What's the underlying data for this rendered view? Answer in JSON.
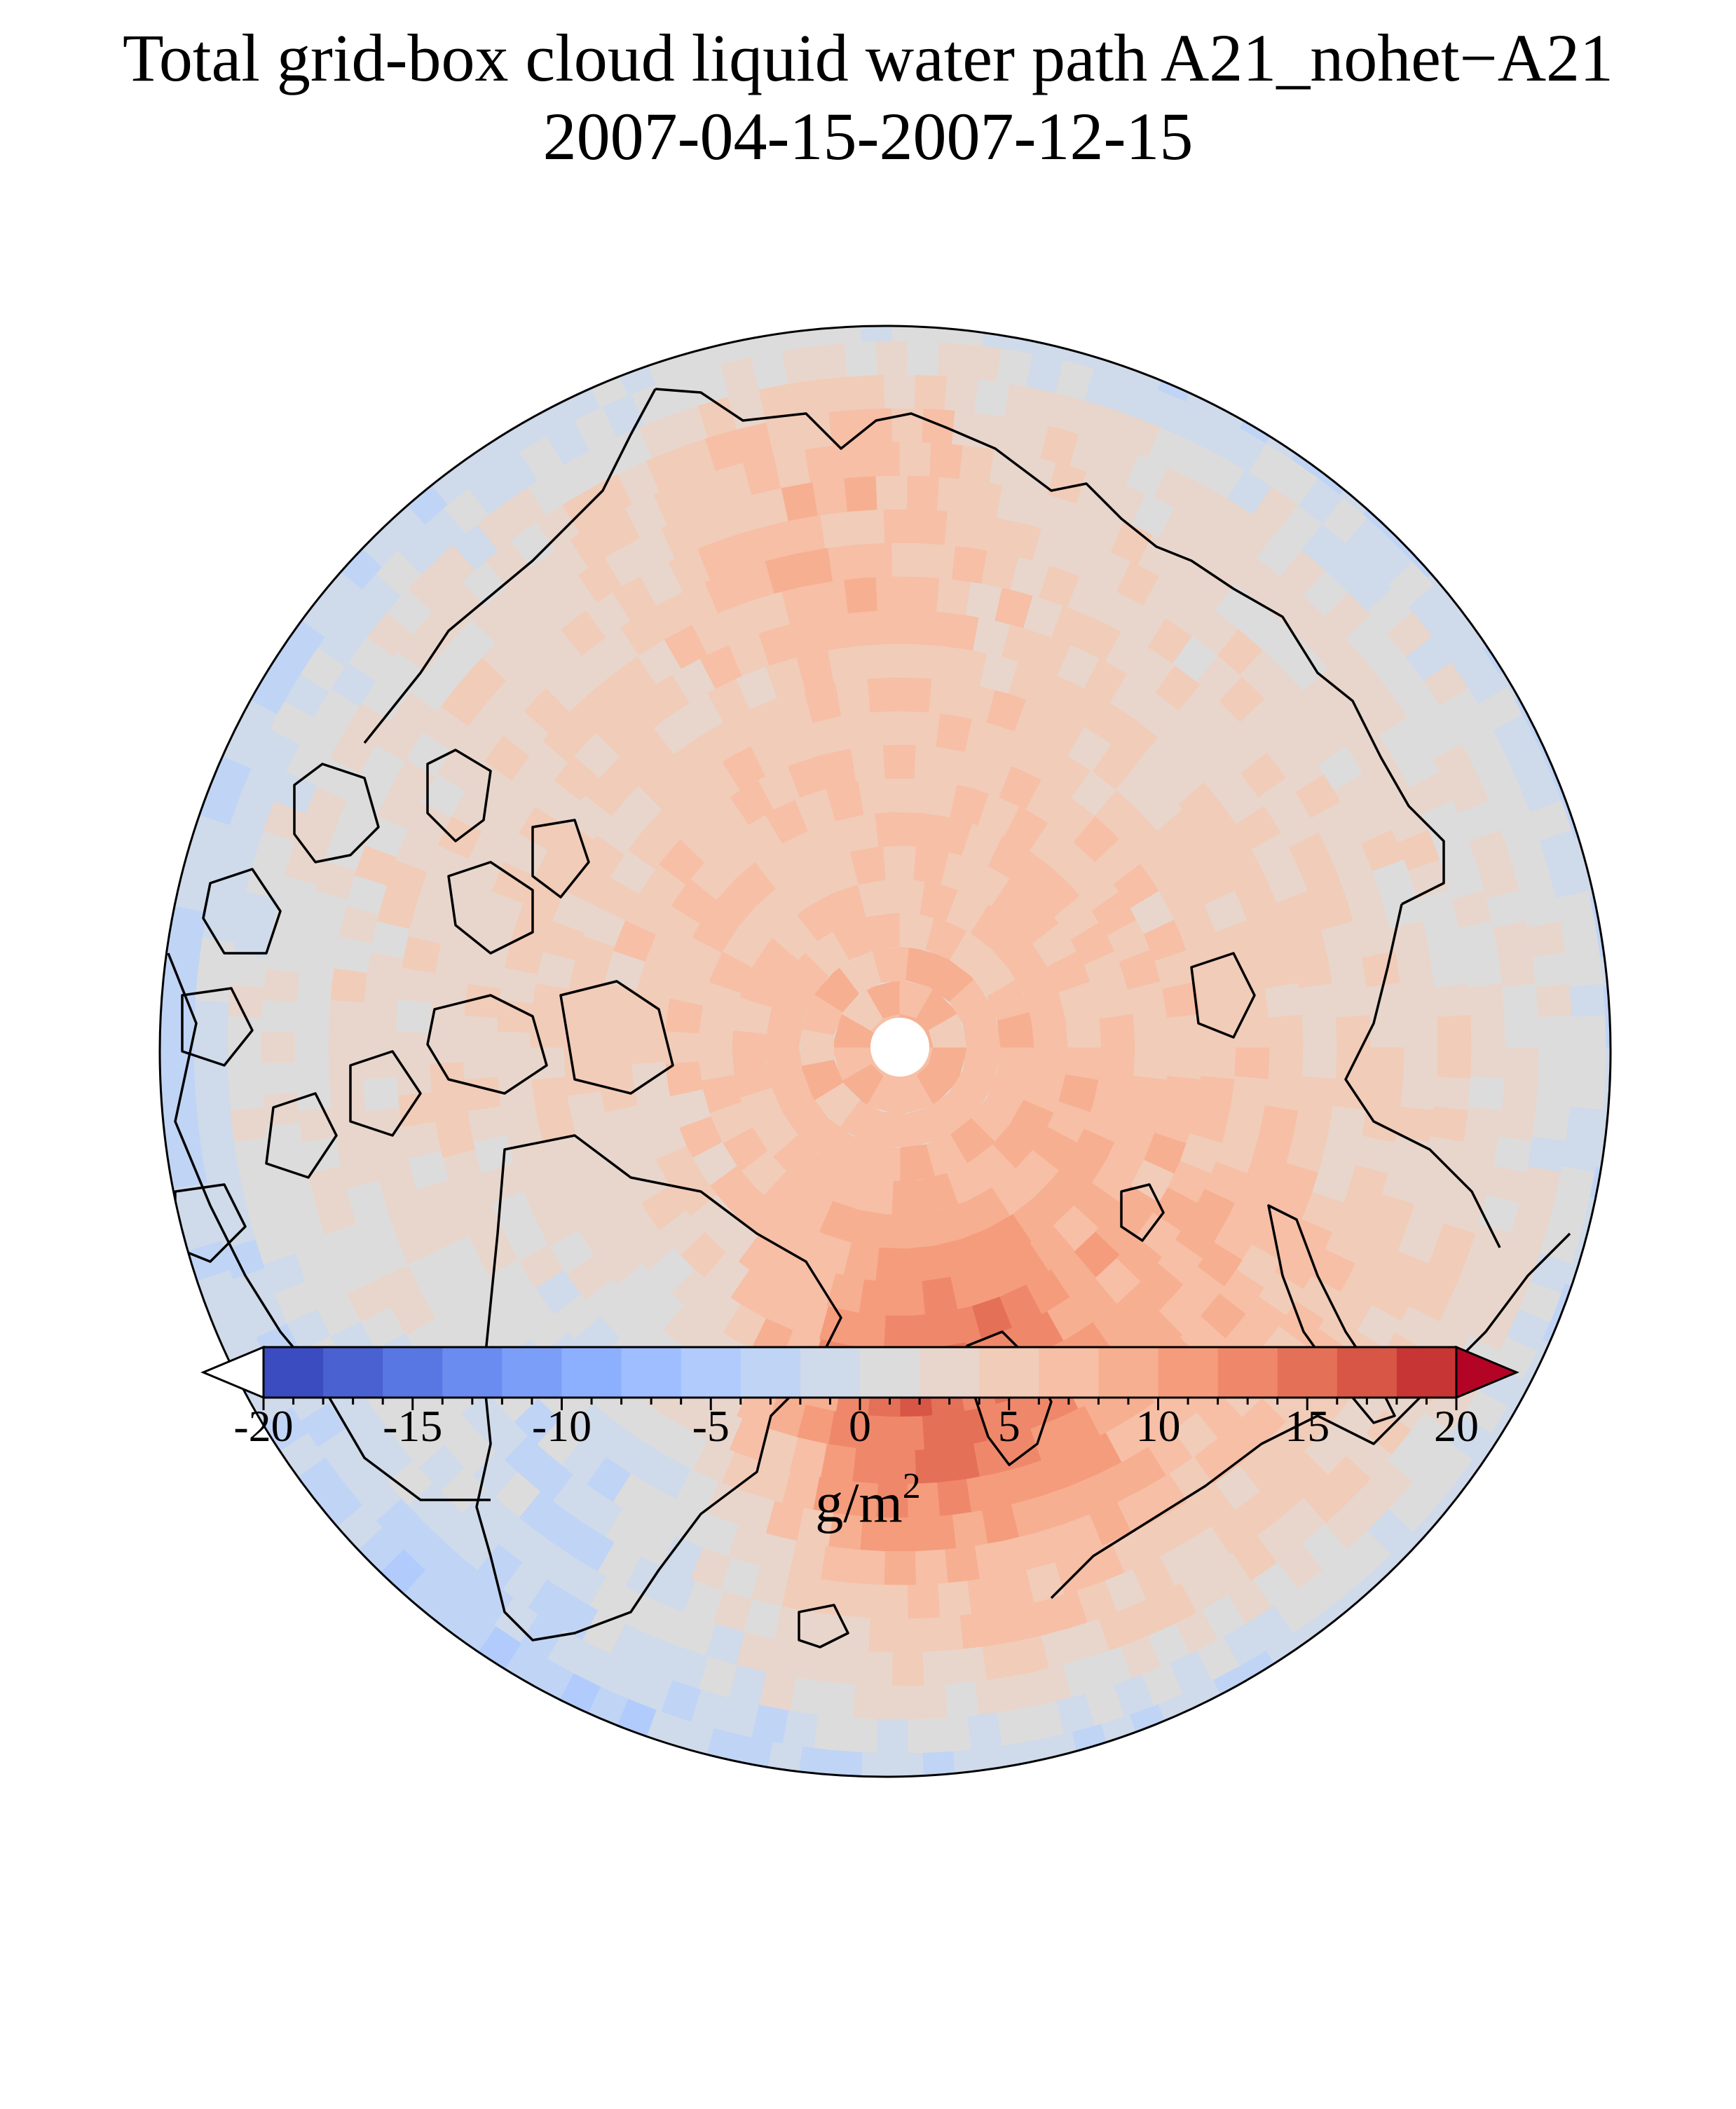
{
  "title": {
    "line1": "Total grid-box cloud liquid water path A21_nohet−A21",
    "line2": "2007-04-15-2007-12-15"
  },
  "colorbar": {
    "min": -20,
    "max": 20,
    "step": 2,
    "tick_labels": [
      "-20",
      "-15",
      "-10",
      "-5",
      "0",
      "5",
      "10",
      "15",
      "20"
    ],
    "tick_values": [
      -20,
      -15,
      -10,
      -5,
      0,
      5,
      10,
      15,
      20
    ],
    "units_base": "g/m",
    "units_exp": "2",
    "extend": "both",
    "colors": [
      "#3b4cc0",
      "#4a61d1",
      "#5977e3",
      "#6a8bef",
      "#7b9ff9",
      "#8db0fe",
      "#9ebeff",
      "#b0cbfc",
      "#c0d4f5",
      "#cfdaea",
      "#dddcdc",
      "#e8d6cc",
      "#f1ccb8",
      "#f6bfa6",
      "#f7af91",
      "#f59c7d",
      "#ef886b",
      "#e57058",
      "#d85646",
      "#c73635"
    ],
    "under_color": "#ffffff",
    "over_color": "#b40426"
  },
  "map": {
    "projection": "north-polar-stereographic",
    "pole_mask_color": "#ffffff",
    "background_color": "#dddcdc",
    "coastline_color": "#000000",
    "field_description_colors": {
      "near_zero": "#dddcdc",
      "slight_positive": "#e8d6cc",
      "moderate_positive": "#f1ccb8",
      "positive": "#f6bfa6",
      "strong_positive": "#f59c7d",
      "max_positive": "#c73635",
      "slight_negative": "#cfdaea"
    }
  }
}
